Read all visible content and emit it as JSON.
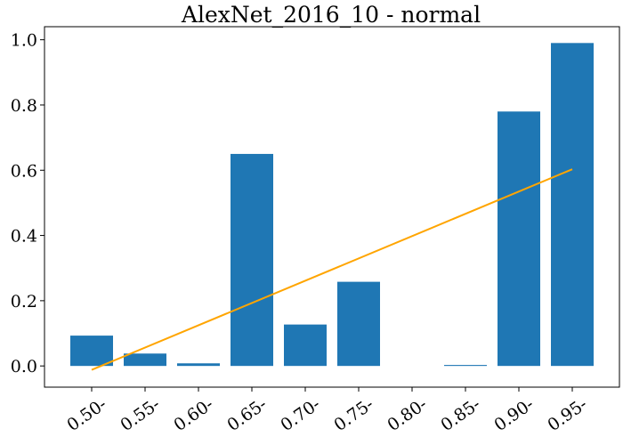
{
  "chart_data": {
    "type": "bar",
    "title": "AlexNet_2016_10 - normal",
    "xlabel": "",
    "ylabel": "",
    "categories": [
      "0.50-",
      "0.55-",
      "0.60-",
      "0.65-",
      "0.70-",
      "0.75-",
      "0.80-",
      "0.85-",
      "0.90-",
      "0.95-"
    ],
    "values": [
      0.093,
      0.038,
      0.008,
      0.65,
      0.127,
      0.258,
      0.0,
      0.003,
      0.78,
      0.99
    ],
    "ylim": [
      -0.065,
      1.04
    ],
    "yticks": [
      0.0,
      0.2,
      0.4,
      0.6,
      0.8,
      1.0
    ],
    "ytick_labels": [
      "0.0",
      "0.2",
      "0.4",
      "0.6",
      "0.8",
      "1.0"
    ],
    "bar_color": "#1f77b4",
    "trend_line": {
      "type": "line",
      "color": "#ffa500",
      "x_categories": [
        "0.50-",
        "0.95-"
      ],
      "y": [
        -0.012,
        0.603
      ]
    },
    "grid": false,
    "legend": "none"
  }
}
